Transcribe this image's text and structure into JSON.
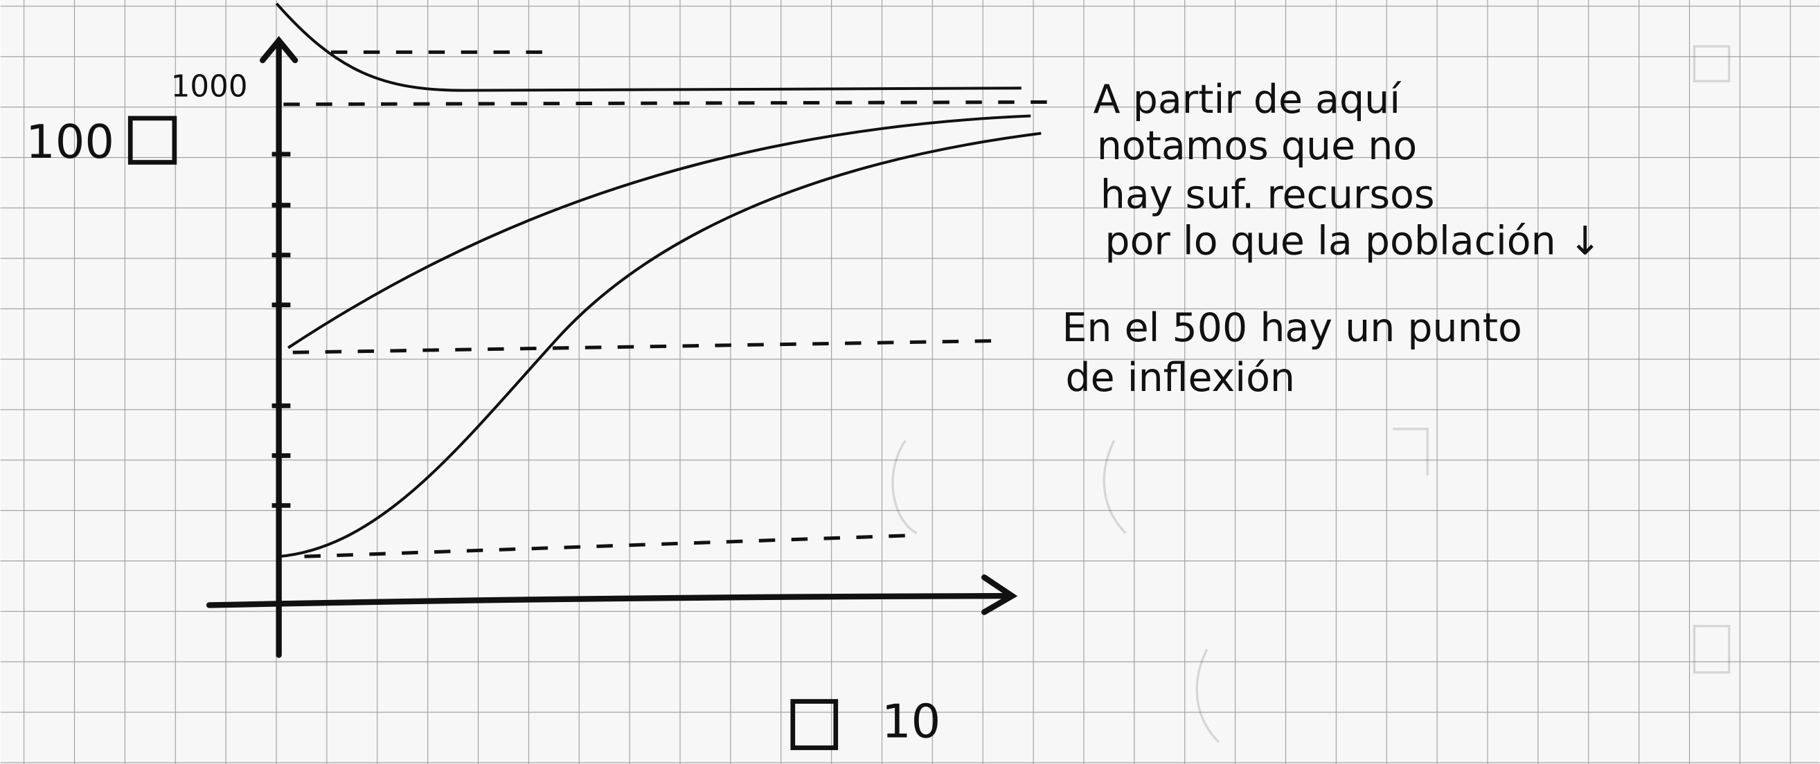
{
  "sketch": {
    "y_label": "100",
    "y_max_label": "1000",
    "x_label": "10",
    "note_1": [
      "A partir de aquí",
      "notamos que no",
      "hay suf. recursos",
      "por lo que la población ↓"
    ],
    "note_2": [
      "En el 500 hay un punto",
      "de inflexión"
    ]
  }
}
